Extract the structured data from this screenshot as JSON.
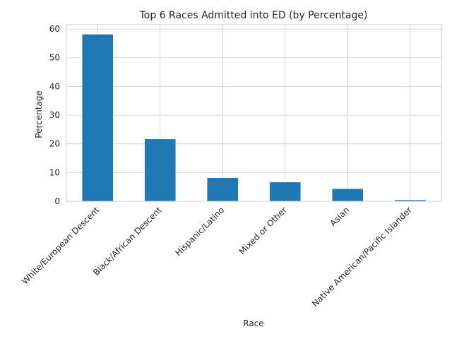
{
  "chart_data": {
    "type": "bar",
    "title": "Top 6 Races Admitted into ED (by Percentage)",
    "xlabel": "Race",
    "ylabel": "Percentage",
    "categories": [
      "White/European Descent",
      "Black/African Descent",
      "Hispanic/Latino",
      "Mixed or Other",
      "Asian",
      "Native American/Pacific Islander"
    ],
    "values": [
      58.2,
      21.7,
      8.2,
      6.7,
      4.4,
      0.5
    ],
    "ylim": [
      0,
      61.5
    ],
    "yticks": [
      0,
      10,
      20,
      30,
      40,
      50,
      60
    ],
    "grid": true,
    "bar_color": "#1f77b4"
  }
}
